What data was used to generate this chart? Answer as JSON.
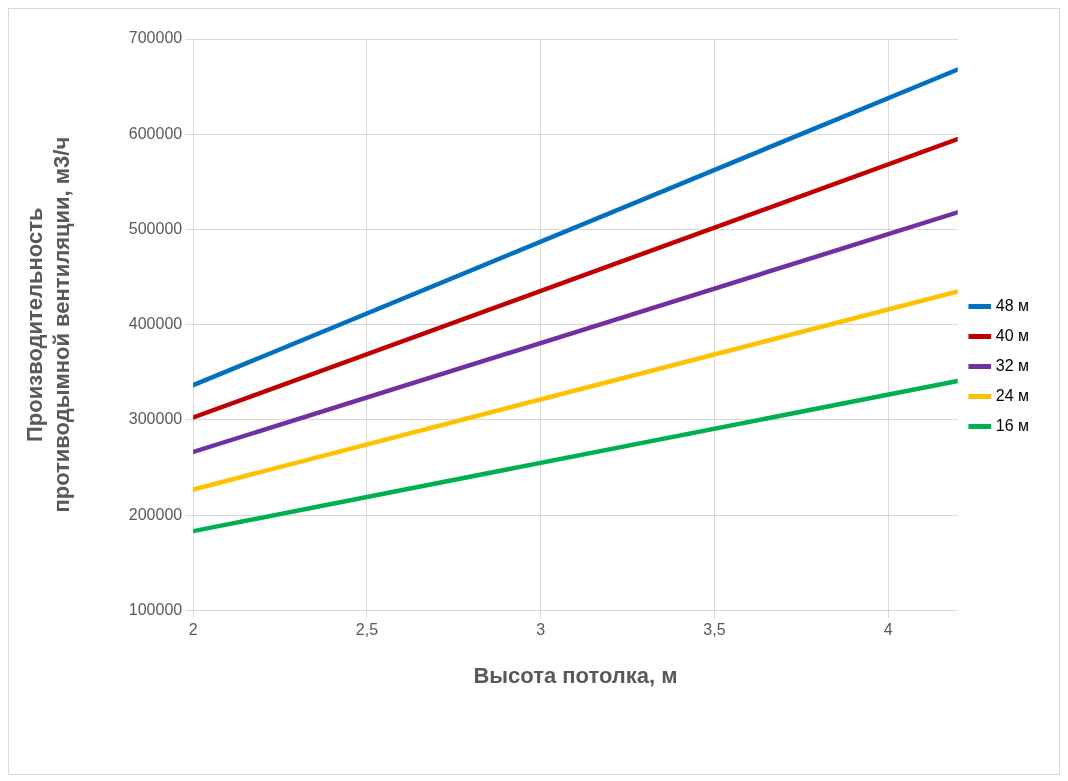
{
  "chart_data": {
    "type": "line",
    "xlabel": "Высота потолка, м",
    "ylabel": "Производительность противодымной вентиляции, м3/ч",
    "xlim": [
      2,
      4.2
    ],
    "xticks": [
      {
        "value": 2,
        "label": "2"
      },
      {
        "value": 2.5,
        "label": "2,5"
      },
      {
        "value": 3,
        "label": "3"
      },
      {
        "value": 3.5,
        "label": "3,5"
      },
      {
        "value": 4,
        "label": "4"
      }
    ],
    "ylim": [
      100000,
      700000
    ],
    "yticks": [
      100000,
      200000,
      300000,
      400000,
      500000,
      600000,
      700000
    ],
    "grid": true,
    "legend": "right",
    "marker": "none",
    "line_style": "solid",
    "x": [
      2,
      4.2
    ],
    "series": [
      {
        "name": "48 м",
        "color": "#0070c0",
        "values": [
          336500,
          668000
        ]
      },
      {
        "name": "40 м",
        "color": "#c00000",
        "values": [
          302600,
          595000
        ]
      },
      {
        "name": "32 м",
        "color": "#7030a0",
        "values": [
          266400,
          518000
        ]
      },
      {
        "name": "24 м",
        "color": "#ffc000",
        "values": [
          227000,
          435000
        ]
      },
      {
        "name": "16 м",
        "color": "#00b050",
        "values": [
          183200,
          341000
        ]
      }
    ]
  }
}
